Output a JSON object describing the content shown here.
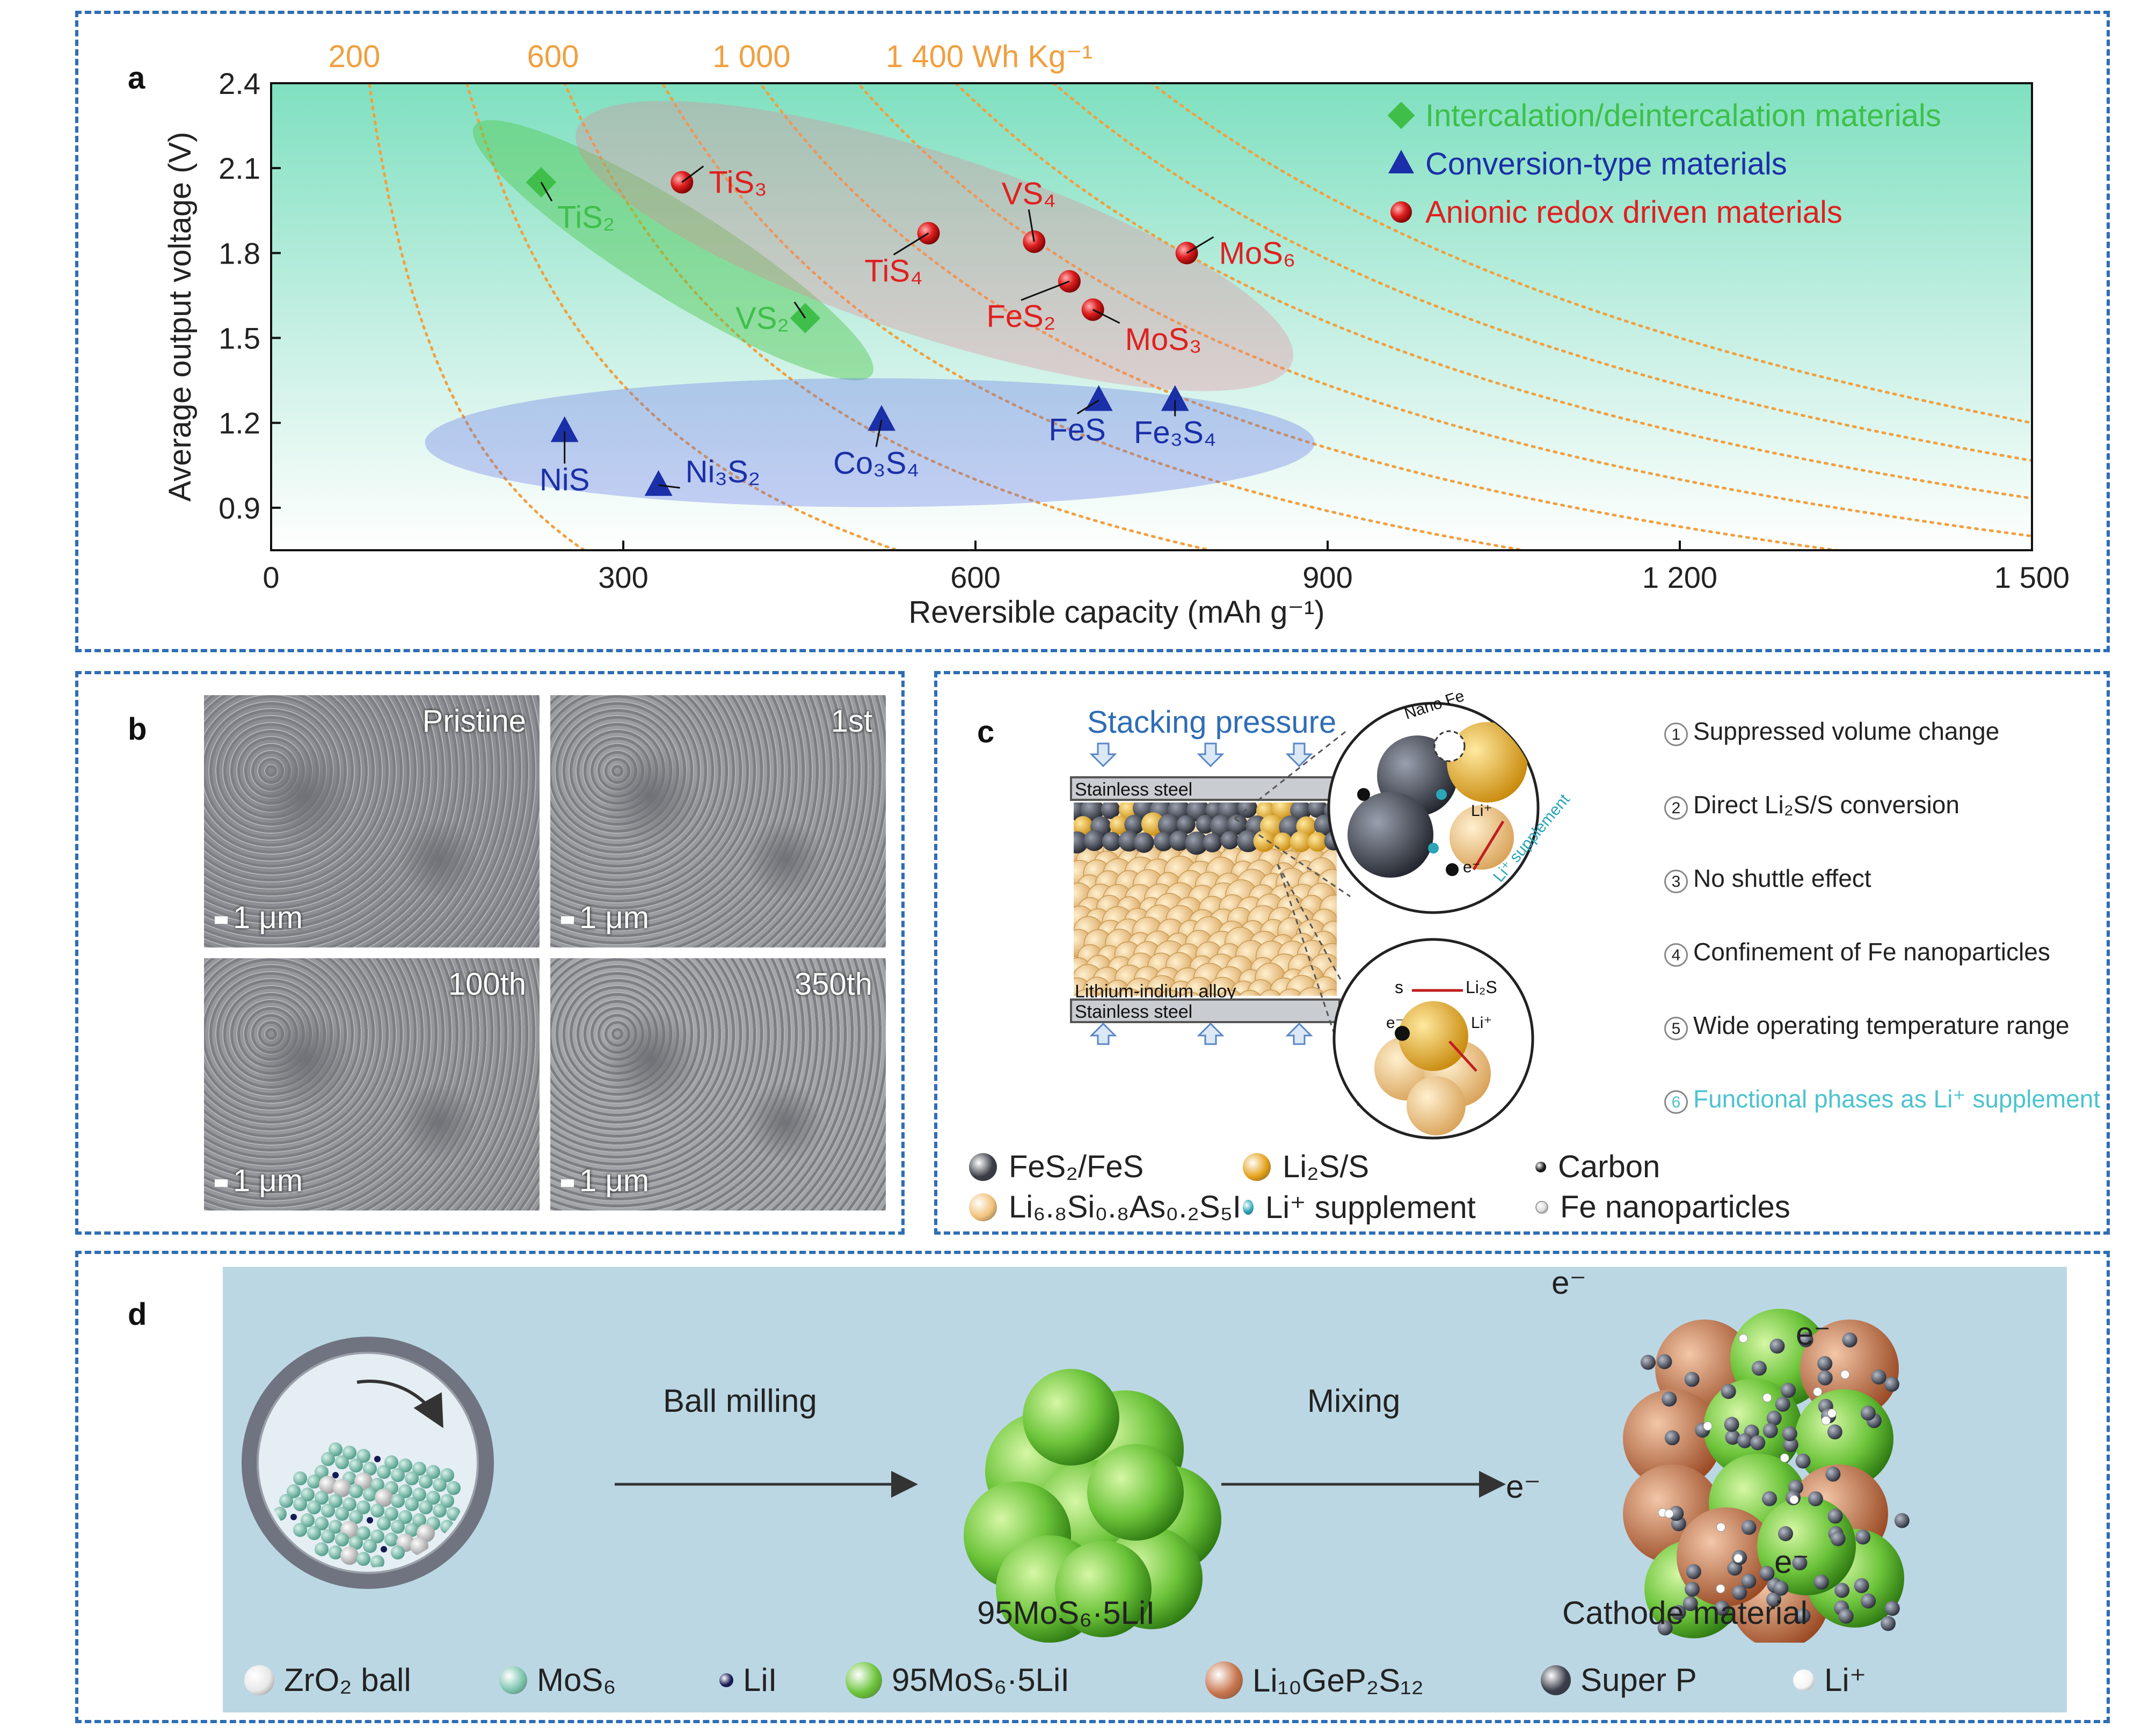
{
  "panel_a": {
    "label": "a",
    "top_axis_ticks": [
      "200",
      "600",
      "1 000",
      "1 400 Wh Kg⁻¹"
    ],
    "chart_data": {
      "type": "scatter",
      "xlabel": "Reversible capacity (mAh g⁻¹)",
      "ylabel": "Average output voltage (V)",
      "xlim": [
        0,
        1500
      ],
      "ylim": [
        0.75,
        2.4
      ],
      "x_ticks": [
        0,
        300,
        600,
        900,
        1200,
        1500
      ],
      "x_tick_labels": [
        "0",
        "300",
        "600",
        "900",
        "1 200",
        "1 500"
      ],
      "y_ticks": [
        0.9,
        1.2,
        1.5,
        1.8,
        2.1,
        2.4
      ],
      "y_tick_labels": [
        "0.9",
        "1.2",
        "1.5",
        "1.8",
        "2.1",
        "2.4"
      ],
      "energy_density_contours_Wh_per_kg": [
        200,
        600,
        1000,
        1400
      ],
      "series": [
        {
          "name": "Intercalation/deintercalation materials",
          "color": "#3fbf4a",
          "marker": "diamond",
          "points": [
            {
              "label": "TiS₂",
              "x": 230,
              "y": 2.05
            },
            {
              "label": "VS₂",
              "x": 455,
              "y": 1.57
            }
          ]
        },
        {
          "name": "Conversion-type materials",
          "color": "#1b2fa8",
          "marker": "triangle",
          "points": [
            {
              "label": "NiS",
              "x": 250,
              "y": 1.17
            },
            {
              "label": "Ni₃S₂",
              "x": 330,
              "y": 0.98
            },
            {
              "label": "Co₃S₄",
              "x": 520,
              "y": 1.21
            },
            {
              "label": "FeS",
              "x": 705,
              "y": 1.28
            },
            {
              "label": "Fe₃S₄",
              "x": 770,
              "y": 1.28
            }
          ]
        },
        {
          "name": "Anionic redox driven materials",
          "color": "#e02020",
          "marker": "sphere",
          "points": [
            {
              "label": "TiS₃",
              "x": 350,
              "y": 2.05
            },
            {
              "label": "TiS₄",
              "x": 560,
              "y": 1.87
            },
            {
              "label": "VS₄",
              "x": 650,
              "y": 1.84
            },
            {
              "label": "FeS₂",
              "x": 680,
              "y": 1.7
            },
            {
              "label": "MoS₃",
              "x": 700,
              "y": 1.6
            },
            {
              "label": "MoS₆",
              "x": 780,
              "y": 1.8
            }
          ]
        }
      ]
    }
  },
  "panel_b": {
    "label": "b",
    "images": [
      {
        "label": "Pristine",
        "scale": "1 μm"
      },
      {
        "label": "1st",
        "scale": "1 μm"
      },
      {
        "label": "100th",
        "scale": "1 μm"
      },
      {
        "label": "350th",
        "scale": "1 μm"
      }
    ]
  },
  "panel_c": {
    "label": "c",
    "stacking_pressure": "Stacking pressure",
    "stainless_steel": "Stainless steel",
    "lithium_indium": "Lithium-indium alloy",
    "nano_fe": "Nano Fe",
    "li_plus": "Li⁺",
    "e_minus": "e⁻",
    "li_supplement_tag": "Li⁺ supplement",
    "s_label": "s",
    "li2s_label": "Li₂S",
    "features": [
      {
        "num": "1",
        "text": "Suppressed volume change"
      },
      {
        "num": "2",
        "text": "Direct Li₂S/S conversion"
      },
      {
        "num": "3",
        "text": "No shuttle effect"
      },
      {
        "num": "4",
        "text": "Confinement of Fe nanoparticles"
      },
      {
        "num": "5",
        "text": "Wide operating temperature range"
      },
      {
        "num": "6",
        "text": "Functional phases as Li⁺ supplement"
      }
    ],
    "legend": [
      {
        "text": "FeS₂/FeS",
        "color": "#3a3d46"
      },
      {
        "text": "Li₂S/S",
        "color": "#e5a21a"
      },
      {
        "text": "Carbon",
        "color": "#111111"
      },
      {
        "text": "Li₆.₈Si₀.₈As₀.₂S₅I",
        "color": "#f1c27a"
      },
      {
        "text": "Li⁺ supplement",
        "color": "#2aa6b8"
      },
      {
        "text": "Fe nanoparticles",
        "color": "#dddddd"
      }
    ]
  },
  "panel_d": {
    "label": "d",
    "ball_milling": "Ball milling",
    "mixing": "Mixing",
    "product_label": "95MoS₆·5LiI",
    "cathode_label": "Cathode material",
    "e_minus": "e⁻",
    "legend": [
      {
        "text": "ZrO₂ ball",
        "color": "#e8e8e8"
      },
      {
        "text": "MoS₆",
        "color": "#7fc6b0"
      },
      {
        "text": "LiI",
        "color": "#151a55"
      },
      {
        "text": "95MoS₆·5LiI",
        "color": "#6cc43a"
      },
      {
        "text": "Li₁₀GeP₂S₁₂",
        "color": "#c8744c"
      },
      {
        "text": "Super P",
        "color": "#3a3d4a"
      },
      {
        "text": "Li⁺",
        "color": "#f5f5f5"
      }
    ]
  }
}
